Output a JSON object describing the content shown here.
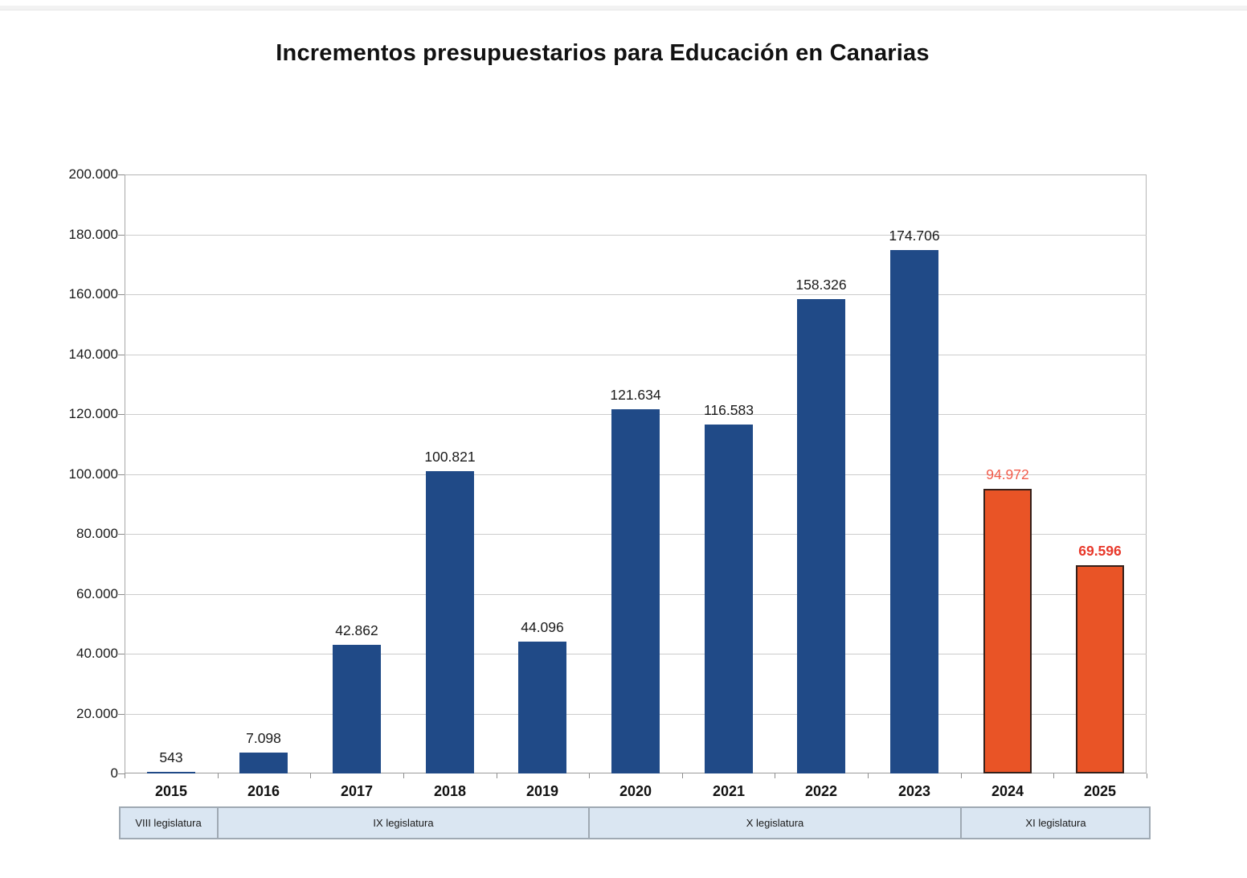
{
  "title": "Incrementos presupuestarios para Educación en Canarias",
  "chart_data": {
    "type": "bar",
    "title": "Incrementos presupuestarios para Educación en Canarias",
    "xlabel": "",
    "ylabel": "",
    "ylim": [
      0,
      200000
    ],
    "ytick_interval": 20000,
    "ytick_labels": [
      "0",
      "20.000",
      "40.000",
      "60.000",
      "80.000",
      "100.000",
      "120.000",
      "140.000",
      "160.000",
      "180.000",
      "200.000"
    ],
    "grid": "horizontal",
    "legend": "none",
    "categories": [
      "2015",
      "2016",
      "2017",
      "2018",
      "2019",
      "2020",
      "2021",
      "2022",
      "2023",
      "2024",
      "2025"
    ],
    "values": [
      543,
      7098,
      42862,
      100821,
      44096,
      121634,
      116583,
      158326,
      174706,
      94972,
      69596
    ],
    "bars": [
      {
        "category": "2015",
        "value": 543,
        "label": "543",
        "fill": "#204A87",
        "border": "none",
        "label_color": "#1A1A1A",
        "label_bold": false
      },
      {
        "category": "2016",
        "value": 7098,
        "label": "7.098",
        "fill": "#204A87",
        "border": "none",
        "label_color": "#1A1A1A",
        "label_bold": false
      },
      {
        "category": "2017",
        "value": 42862,
        "label": "42.862",
        "fill": "#204A87",
        "border": "none",
        "label_color": "#1A1A1A",
        "label_bold": false
      },
      {
        "category": "2018",
        "value": 100821,
        "label": "100.821",
        "fill": "#204A87",
        "border": "none",
        "label_color": "#1A1A1A",
        "label_bold": false
      },
      {
        "category": "2019",
        "value": 44096,
        "label": "44.096",
        "fill": "#204A87",
        "border": "none",
        "label_color": "#1A1A1A",
        "label_bold": false
      },
      {
        "category": "2020",
        "value": 121634,
        "label": "121.634",
        "fill": "#204A87",
        "border": "none",
        "label_color": "#1A1A1A",
        "label_bold": false
      },
      {
        "category": "2021",
        "value": 116583,
        "label": "116.583",
        "fill": "#204A87",
        "border": "none",
        "label_color": "#1A1A1A",
        "label_bold": false
      },
      {
        "category": "2022",
        "value": 158326,
        "label": "158.326",
        "fill": "#204A87",
        "border": "none",
        "label_color": "#1A1A1A",
        "label_bold": false
      },
      {
        "category": "2023",
        "value": 174706,
        "label": "174.706",
        "fill": "#204A87",
        "border": "none",
        "label_color": "#1A1A1A",
        "label_bold": false
      },
      {
        "category": "2024",
        "value": 94972,
        "label": "94.972",
        "fill": "#E95426",
        "border": "#35201A",
        "label_color": "#F25B4A",
        "label_bold": false
      },
      {
        "category": "2025",
        "value": 69596,
        "label": "69.596",
        "fill": "#E95426",
        "border": "#35201A",
        "label_color": "#E8392B",
        "label_bold": true
      }
    ],
    "legislatures": [
      {
        "label": "VIII legislatura",
        "from_index": 0,
        "to_index": 1
      },
      {
        "label": "IX legislatura",
        "from_index": 1,
        "to_index": 5
      },
      {
        "label": "X legislatura",
        "from_index": 5,
        "to_index": 9
      },
      {
        "label": "XI legislatura",
        "from_index": 9,
        "to_index": 11
      }
    ],
    "colors": {
      "bar_blue": "#204A87",
      "bar_orange": "#E95426",
      "orange_border": "#35201A",
      "label_black": "#1A1A1A",
      "label_red": "#F25B4A",
      "label_red_bold": "#E8392B",
      "gridline": "#CCCCCC",
      "band_fill": "#DAE6F2",
      "band_border": "#9FA9B3"
    }
  }
}
